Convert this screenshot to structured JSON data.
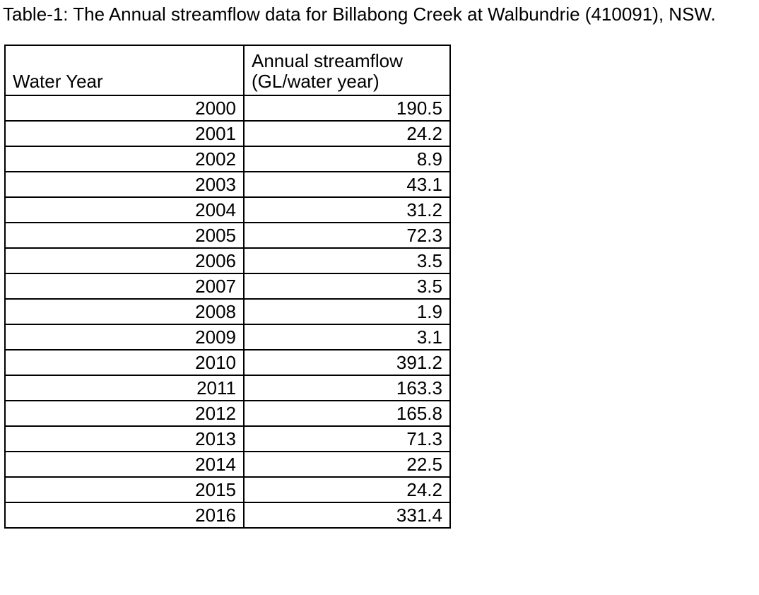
{
  "page": {
    "caption": "Table-1: The Annual streamflow data for Billabong Creek at Walbundrie (410091), NSW."
  },
  "table": {
    "header": {
      "water_year": "Water Year",
      "streamflow_line1": "Annual streamflow",
      "streamflow_line2": "(GL/water year)"
    },
    "rows": [
      {
        "year": "2000",
        "flow": "190.5"
      },
      {
        "year": "2001",
        "flow": "24.2"
      },
      {
        "year": "2002",
        "flow": "8.9"
      },
      {
        "year": "2003",
        "flow": "43.1"
      },
      {
        "year": "2004",
        "flow": "31.2"
      },
      {
        "year": "2005",
        "flow": "72.3"
      },
      {
        "year": "2006",
        "flow": "3.5"
      },
      {
        "year": "2007",
        "flow": "3.5"
      },
      {
        "year": "2008",
        "flow": "1.9"
      },
      {
        "year": "2009",
        "flow": "3.1"
      },
      {
        "year": "2010",
        "flow": "391.2"
      },
      {
        "year": "2011",
        "flow": "163.3"
      },
      {
        "year": "2012",
        "flow": "165.8"
      },
      {
        "year": "2013",
        "flow": "71.3"
      },
      {
        "year": "2014",
        "flow": "22.5"
      },
      {
        "year": "2015",
        "flow": "24.2"
      },
      {
        "year": "2016",
        "flow": "331.4"
      }
    ]
  },
  "chart_data": {
    "type": "table",
    "title": "Table-1: The Annual streamflow data for Billabong Creek at Walbundrie (410091), NSW.",
    "columns": [
      "Water Year",
      "Annual streamflow (GL/water year)"
    ],
    "years": [
      2000,
      2001,
      2002,
      2003,
      2004,
      2005,
      2006,
      2007,
      2008,
      2009,
      2010,
      2011,
      2012,
      2013,
      2014,
      2015,
      2016
    ],
    "values": [
      190.5,
      24.2,
      8.9,
      43.1,
      31.2,
      72.3,
      3.5,
      3.5,
      1.9,
      3.1,
      391.2,
      163.3,
      165.8,
      71.3,
      22.5,
      24.2,
      331.4
    ]
  }
}
